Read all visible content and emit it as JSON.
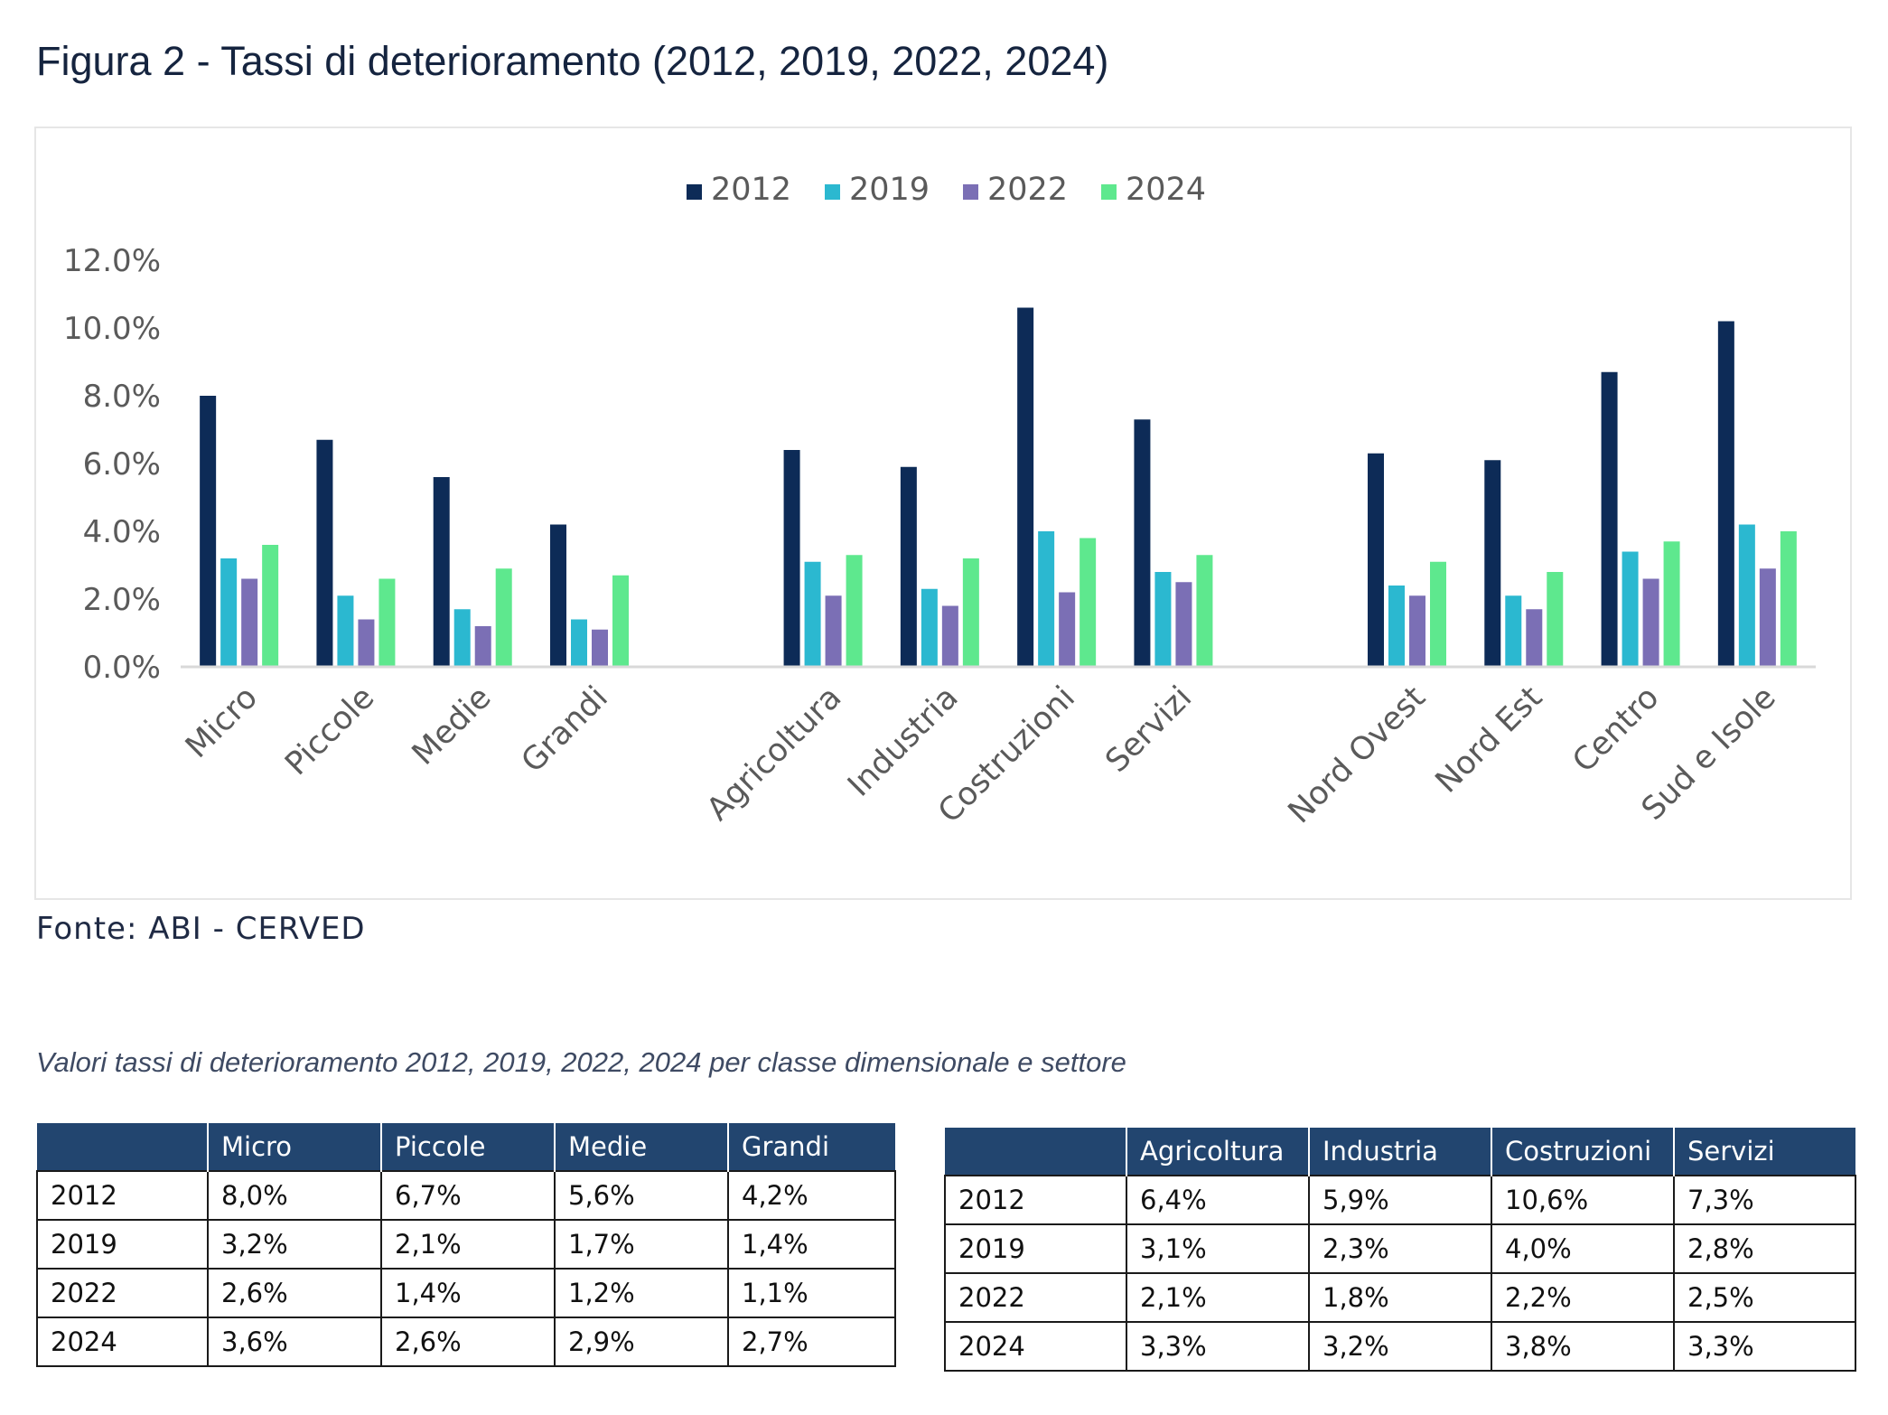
{
  "title": "Figura 2 - Tassi di deterioramento (2012, 2019, 2022, 2024)",
  "source": "Fonte: ABI - CERVED",
  "subtitle": "Valori tassi di deterioramento 2012, 2019, 2022, 2024 per classe dimensionale e settore",
  "colors": {
    "2012": "#0d2b57",
    "2019": "#2bb8d0",
    "2022": "#7b6fb5",
    "2024": "#5ee88e",
    "axis": "#d9d9d9",
    "tick_text": "#5a5a5a",
    "table_header": "#22456f"
  },
  "chart_data": {
    "type": "bar",
    "title": "Figura 2 - Tassi di deterioramento (2012, 2019, 2022, 2024)",
    "categories": [
      "Micro",
      "Piccole",
      "Medie",
      "Grandi",
      "",
      "Agricoltura",
      "Industria",
      "Costruzioni",
      "Servizi",
      "",
      "Nord Ovest",
      "Nord Est",
      "Centro",
      "Sud e Isole"
    ],
    "series": [
      {
        "name": "2012",
        "values": [
          8.0,
          6.7,
          5.6,
          4.2,
          null,
          6.4,
          5.9,
          10.6,
          7.3,
          null,
          6.3,
          6.1,
          8.7,
          10.2
        ]
      },
      {
        "name": "2019",
        "values": [
          3.2,
          2.1,
          1.7,
          1.4,
          null,
          3.1,
          2.3,
          4.0,
          2.8,
          null,
          2.4,
          2.1,
          3.4,
          4.2
        ]
      },
      {
        "name": "2022",
        "values": [
          2.6,
          1.4,
          1.2,
          1.1,
          null,
          2.1,
          1.8,
          2.2,
          2.5,
          null,
          2.1,
          1.7,
          2.6,
          2.9
        ]
      },
      {
        "name": "2024",
        "values": [
          3.6,
          2.6,
          2.9,
          2.7,
          null,
          3.3,
          3.2,
          3.8,
          3.3,
          null,
          3.1,
          2.8,
          3.7,
          4.0
        ]
      }
    ],
    "ylim": [
      0,
      12
    ],
    "yticks": [
      "0.0%",
      "2.0%",
      "4.0%",
      "6.0%",
      "8.0%",
      "10.0%",
      "12.0%"
    ],
    "xlabel": "",
    "ylabel": "",
    "grid": false,
    "legend": "top-center"
  },
  "table_size": {
    "headers": [
      "",
      "Micro",
      "Piccole",
      "Medie",
      "Grandi"
    ],
    "rows": [
      [
        "2012",
        "8,0%",
        "6,7%",
        "5,6%",
        "4,2%"
      ],
      [
        "2019",
        "3,2%",
        "2,1%",
        "1,7%",
        "1,4%"
      ],
      [
        "2022",
        "2,6%",
        "1,4%",
        "1,2%",
        "1,1%"
      ],
      [
        "2024",
        "3,6%",
        "2,6%",
        "2,9%",
        "2,7%"
      ]
    ]
  },
  "table_sector": {
    "headers": [
      "",
      "Agricoltura",
      "Industria",
      "Costruzioni",
      "Servizi"
    ],
    "rows": [
      [
        "2012",
        "6,4%",
        "5,9%",
        "10,6%",
        "7,3%"
      ],
      [
        "2019",
        "3,1%",
        "2,3%",
        "4,0%",
        "2,8%"
      ],
      [
        "2022",
        "2,1%",
        "1,8%",
        "2,2%",
        "2,5%"
      ],
      [
        "2024",
        "3,3%",
        "3,2%",
        "3,8%",
        "3,3%"
      ]
    ]
  }
}
